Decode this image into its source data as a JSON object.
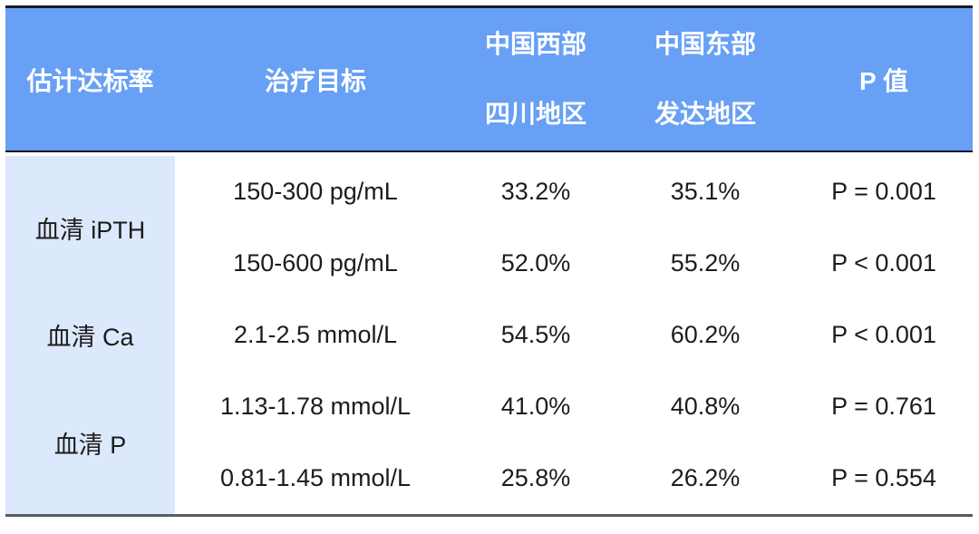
{
  "colors": {
    "header_bg": "#67A0F4",
    "header_text": "#ffffff",
    "row_label_bg": "#DCE8FB",
    "top_rule": "#171a20",
    "header_rule": "#0e1626",
    "bottom_rule": "#585c63",
    "body_text": "#1c1c1c"
  },
  "table": {
    "headers": {
      "col1": "估计达标率",
      "col2": "治疗目标",
      "col3_line1": "中国西部",
      "col3_line2": "四川地区",
      "col4_line1": "中国东部",
      "col4_line2": "发达地区",
      "col5": "P 值"
    },
    "groups": [
      {
        "label": "血清 iPTH"
      },
      {
        "label": "血清 Ca"
      },
      {
        "label": "血清 P"
      }
    ],
    "rows": [
      {
        "target": "150-300 pg/mL",
        "west": "33.2%",
        "east": "35.1%",
        "p": "P = 0.001"
      },
      {
        "target": "150-600 pg/mL",
        "west": "52.0%",
        "east": "55.2%",
        "p": "P < 0.001"
      },
      {
        "target": "2.1-2.5 mmol/L",
        "west": "54.5%",
        "east": "60.2%",
        "p": "P < 0.001"
      },
      {
        "target": "1.13-1.78 mmol/L",
        "west": "41.0%",
        "east": "40.8%",
        "p": "P = 0.761"
      },
      {
        "target": "0.81-1.45 mmol/L",
        "west": "25.8%",
        "east": "26.2%",
        "p": "P = 0.554"
      }
    ]
  },
  "chart_data": {
    "type": "table",
    "columns": [
      "估计达标率",
      "治疗目标",
      "中国西部 四川地区",
      "中国东部 发达地区",
      "P 值"
    ],
    "rows": [
      [
        "血清 iPTH",
        "150-300 pg/mL",
        "33.2%",
        "35.1%",
        "P = 0.001"
      ],
      [
        "血清 iPTH",
        "150-600 pg/mL",
        "52.0%",
        "55.2%",
        "P < 0.001"
      ],
      [
        "血清 Ca",
        "2.1-2.5 mmol/L",
        "54.5%",
        "60.2%",
        "P < 0.001"
      ],
      [
        "血清 P",
        "1.13-1.78 mmol/L",
        "41.0%",
        "40.8%",
        "P = 0.761"
      ],
      [
        "血清 P",
        "0.81-1.45 mmol/L",
        "25.8%",
        "26.2%",
        "P = 0.554"
      ]
    ]
  }
}
